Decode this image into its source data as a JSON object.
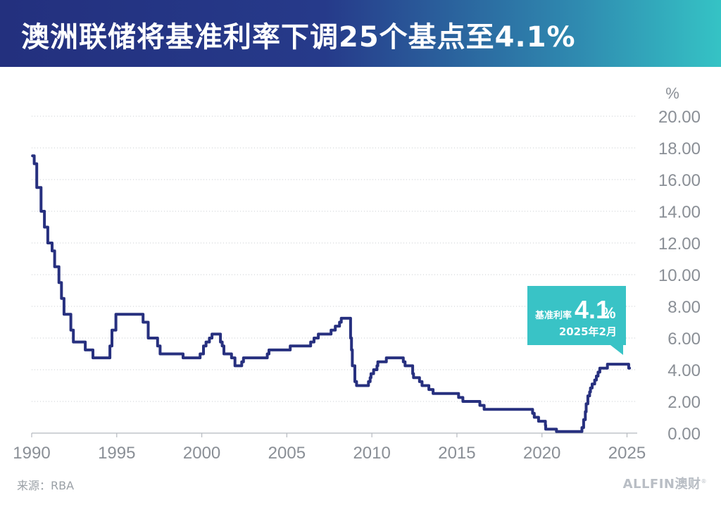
{
  "header": {
    "title": "澳洲联储将基准利率下调25个基点至4.1%"
  },
  "footer": {
    "source": "来源：RBA",
    "brand_name": "ALLFIN",
    "brand_cn": "澳财",
    "brand_mark": "®"
  },
  "callout": {
    "label": "基准利率",
    "value": "4.1",
    "unit": "%",
    "date": "2025年2月"
  },
  "colors": {
    "line": "#27307f",
    "callout_bg": "#39c3c6",
    "grid": "#c9cdd2",
    "tick_text": "#8a8f96"
  },
  "chart_data": {
    "type": "line",
    "title": "澳洲联储将基准利率下调25个基点至4.1%",
    "ylabel": "%",
    "xlabel": "",
    "xlim": [
      1990,
      2025.6
    ],
    "ylim": [
      0,
      20
    ],
    "x_ticks": [
      1990,
      1995,
      2000,
      2005,
      2010,
      2015,
      2020,
      2025
    ],
    "x_tick_labels": [
      "1990",
      "1995",
      "2000",
      "2005",
      "2010",
      "2015",
      "2020",
      "2025"
    ],
    "y_ticks": [
      0,
      2,
      4,
      6,
      8,
      10,
      12,
      14,
      16,
      18,
      20
    ],
    "y_tick_labels": [
      "0.00",
      "2.00",
      "4.00",
      "6.00",
      "8.00",
      "10.00",
      "12.00",
      "14.00",
      "16.00",
      "18.00",
      "20.00"
    ],
    "grid": "horizontal-dotted",
    "series": [
      {
        "name": "基准利率",
        "step": true,
        "points": [
          [
            1990.05,
            17.5
          ],
          [
            1990.15,
            17.0
          ],
          [
            1990.3,
            15.5
          ],
          [
            1990.55,
            14.0
          ],
          [
            1990.75,
            13.0
          ],
          [
            1990.95,
            12.0
          ],
          [
            1991.2,
            11.5
          ],
          [
            1991.35,
            10.5
          ],
          [
            1991.6,
            9.5
          ],
          [
            1991.75,
            8.5
          ],
          [
            1991.9,
            7.5
          ],
          [
            1992.3,
            6.5
          ],
          [
            1992.45,
            5.75
          ],
          [
            1993.15,
            5.25
          ],
          [
            1993.6,
            4.75
          ],
          [
            1994.6,
            5.5
          ],
          [
            1994.72,
            6.5
          ],
          [
            1994.95,
            7.5
          ],
          [
            1996.55,
            7.0
          ],
          [
            1996.85,
            6.0
          ],
          [
            1997.4,
            5.5
          ],
          [
            1997.55,
            5.0
          ],
          [
            1998.9,
            4.75
          ],
          [
            1999.9,
            5.0
          ],
          [
            2000.1,
            5.5
          ],
          [
            2000.25,
            5.75
          ],
          [
            2000.45,
            6.0
          ],
          [
            2000.6,
            6.25
          ],
          [
            2001.1,
            5.75
          ],
          [
            2001.2,
            5.5
          ],
          [
            2001.3,
            5.0
          ],
          [
            2001.75,
            4.75
          ],
          [
            2001.95,
            4.25
          ],
          [
            2002.35,
            4.5
          ],
          [
            2002.45,
            4.75
          ],
          [
            2003.85,
            5.0
          ],
          [
            2003.95,
            5.25
          ],
          [
            2005.2,
            5.5
          ],
          [
            2006.4,
            5.75
          ],
          [
            2006.6,
            6.0
          ],
          [
            2006.85,
            6.25
          ],
          [
            2007.6,
            6.5
          ],
          [
            2007.85,
            6.75
          ],
          [
            2008.1,
            7.0
          ],
          [
            2008.2,
            7.25
          ],
          [
            2008.75,
            6.0
          ],
          [
            2008.8,
            5.25
          ],
          [
            2008.85,
            4.25
          ],
          [
            2009.0,
            3.25
          ],
          [
            2009.1,
            3.0
          ],
          [
            2009.8,
            3.25
          ],
          [
            2009.9,
            3.5
          ],
          [
            2009.95,
            3.75
          ],
          [
            2010.1,
            4.0
          ],
          [
            2010.3,
            4.25
          ],
          [
            2010.35,
            4.5
          ],
          [
            2010.85,
            4.75
          ],
          [
            2011.85,
            4.5
          ],
          [
            2011.95,
            4.25
          ],
          [
            2012.4,
            3.75
          ],
          [
            2012.45,
            3.5
          ],
          [
            2012.8,
            3.25
          ],
          [
            2012.95,
            3.0
          ],
          [
            2013.35,
            2.75
          ],
          [
            2013.6,
            2.5
          ],
          [
            2015.1,
            2.25
          ],
          [
            2015.35,
            2.0
          ],
          [
            2016.35,
            1.75
          ],
          [
            2016.6,
            1.5
          ],
          [
            2019.45,
            1.25
          ],
          [
            2019.55,
            1.0
          ],
          [
            2019.8,
            0.75
          ],
          [
            2020.2,
            0.5
          ],
          [
            2020.22,
            0.25
          ],
          [
            2020.85,
            0.1
          ],
          [
            2022.35,
            0.35
          ],
          [
            2022.45,
            0.85
          ],
          [
            2022.55,
            1.35
          ],
          [
            2022.6,
            1.85
          ],
          [
            2022.7,
            2.35
          ],
          [
            2022.8,
            2.6
          ],
          [
            2022.85,
            2.85
          ],
          [
            2022.95,
            3.1
          ],
          [
            2023.1,
            3.35
          ],
          [
            2023.2,
            3.6
          ],
          [
            2023.3,
            3.85
          ],
          [
            2023.4,
            4.1
          ],
          [
            2023.85,
            4.35
          ],
          [
            2025.1,
            4.1
          ]
        ],
        "end_x": 2025.15
      }
    ]
  }
}
